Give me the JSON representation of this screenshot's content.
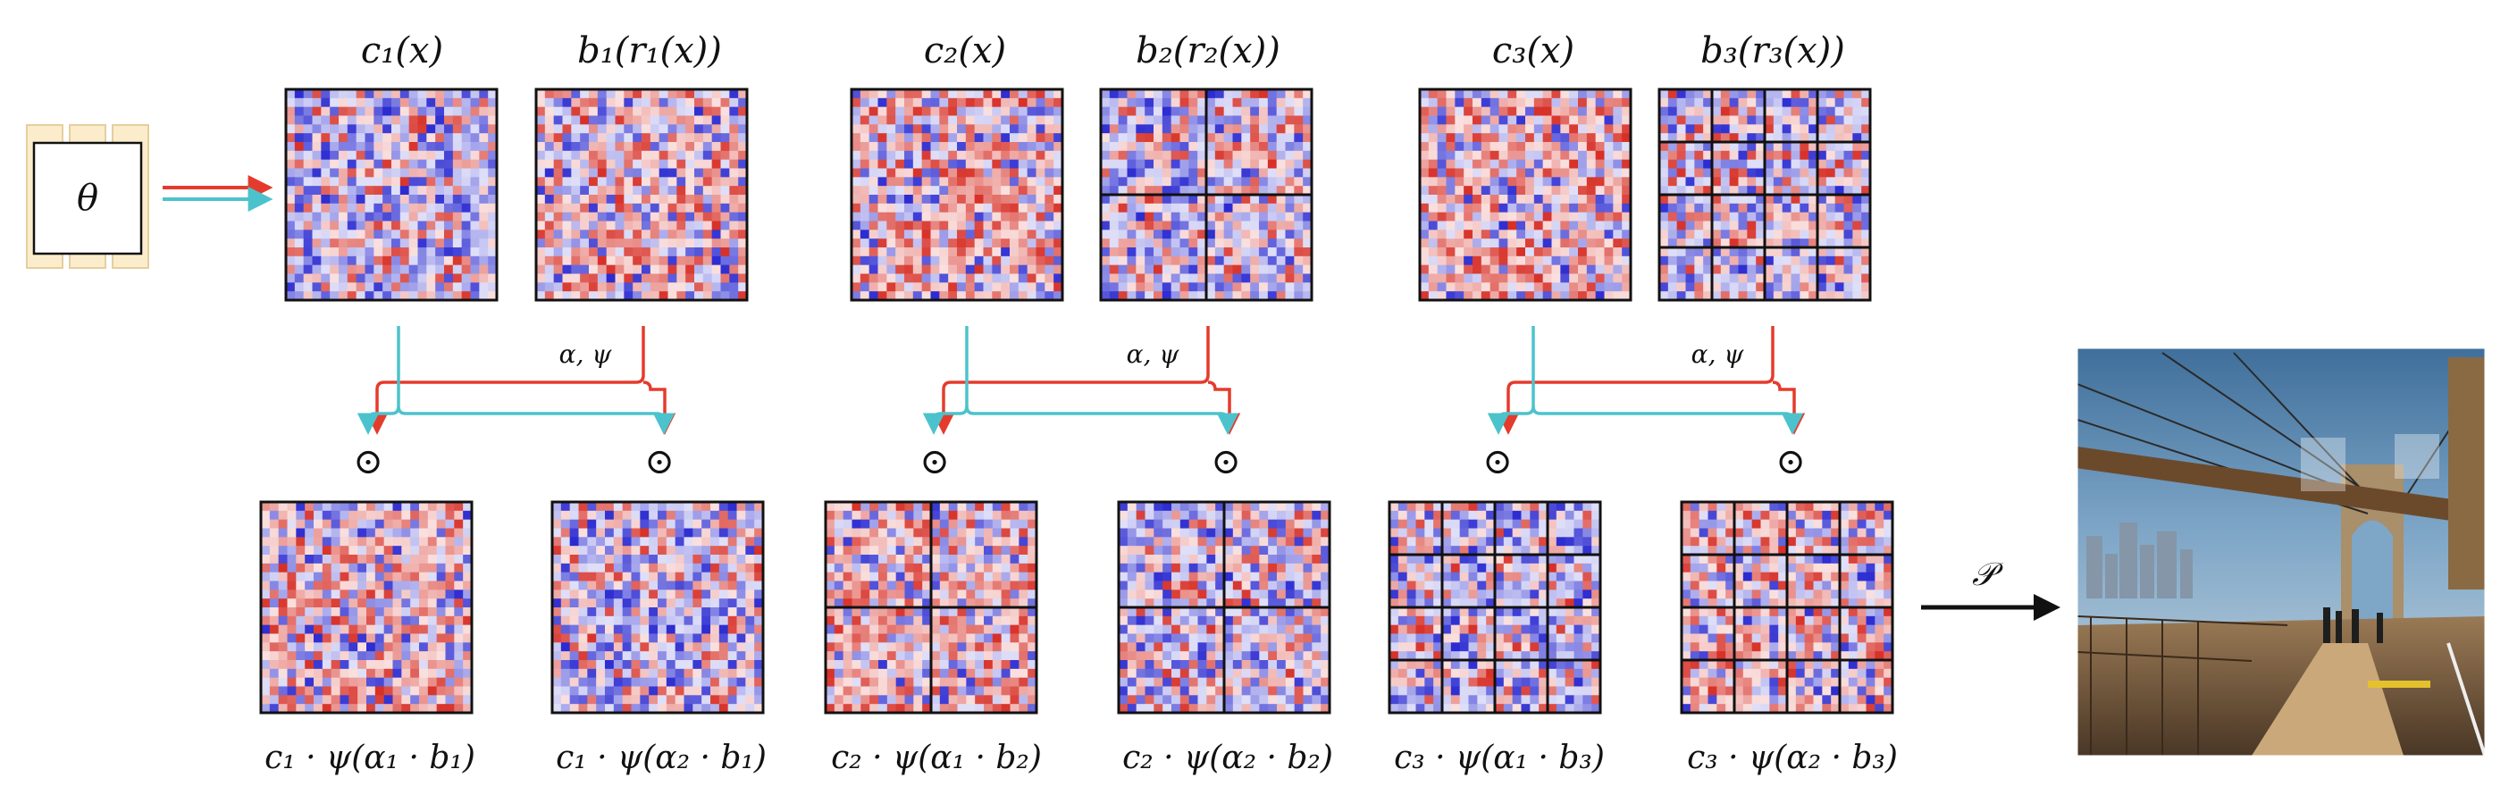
{
  "input_block": {
    "label": "θ"
  },
  "top_labels": [
    "c₁(x)",
    "b₁(r₁(x))",
    "c₂(x)",
    "b₂(r₂(x))",
    "c₃(x)",
    "b₃(r₃(x))"
  ],
  "top_grids": [
    {
      "splits": 1,
      "tone": "blue"
    },
    {
      "splits": 1,
      "tone": "red"
    },
    {
      "splits": 1,
      "tone": "red"
    },
    {
      "splits": 2,
      "tone": "blue"
    },
    {
      "splits": 1,
      "tone": "red"
    },
    {
      "splits": 4,
      "tone": "blue"
    }
  ],
  "arrow_labels": [
    "α, ψ",
    "α, ψ",
    "α, ψ"
  ],
  "operator_symbol": "⊙",
  "bottom_labels": [
    "c₁ · ψ(α₁ · b₁)",
    "c₁ · ψ(α₂ · b₁)",
    "c₂ · ψ(α₁ · b₂)",
    "c₂ · ψ(α₂ · b₂)",
    "c₃ · ψ(α₁ · b₃)",
    "c₃ · ψ(α₂ · b₃)"
  ],
  "bottom_grids": [
    {
      "splits": 1,
      "tone": "red"
    },
    {
      "splits": 1,
      "tone": "blue"
    },
    {
      "splits": 2,
      "tone": "red"
    },
    {
      "splits": 2,
      "tone": "blue"
    },
    {
      "splits": 4,
      "tone": "blue"
    },
    {
      "splits": 4,
      "tone": "red"
    }
  ],
  "projection_label": "𝒫",
  "colors": {
    "red_arrow": "#e53b2c",
    "cyan_arrow": "#4cc3cc",
    "block_fill": "#fbeccb",
    "heat_red": "#d7301f",
    "heat_blue": "#2b2bd1"
  },
  "output_image": {
    "description_icon": "photo-icon"
  }
}
